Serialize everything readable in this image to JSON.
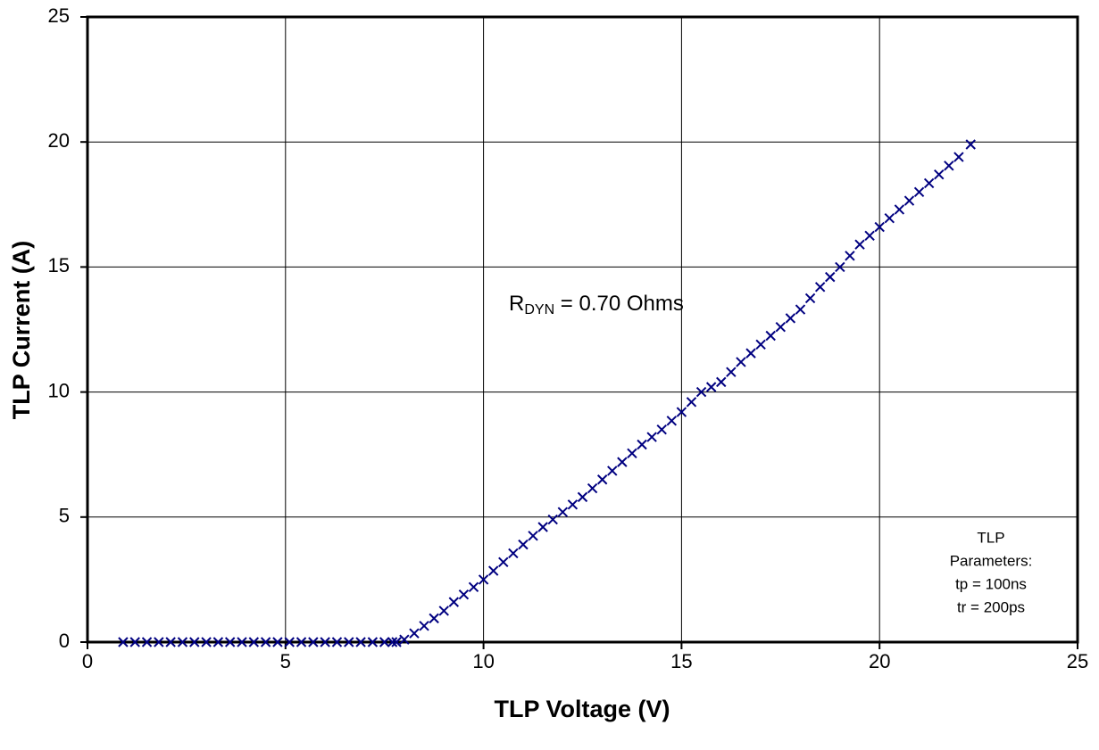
{
  "chart_data": {
    "type": "scatter",
    "x_label": "TLP Voltage (V)",
    "y_label": "TLP Current (A)",
    "xlim": [
      0,
      25
    ],
    "xticks": [
      0,
      5,
      10,
      15,
      20,
      25
    ],
    "ylim": [
      0,
      25
    ],
    "yticks": [
      0,
      5,
      10,
      15,
      20,
      25
    ],
    "grid": true,
    "marker": "x",
    "color": "#000080",
    "x": [
      0.9,
      1.2,
      1.5,
      1.8,
      2.1,
      2.4,
      2.7,
      3.0,
      3.3,
      3.6,
      3.9,
      4.2,
      4.5,
      4.8,
      5.1,
      5.4,
      5.7,
      6.0,
      6.3,
      6.6,
      6.9,
      7.2,
      7.5,
      7.7,
      7.8,
      8.0,
      8.25,
      8.5,
      8.75,
      9.0,
      9.25,
      9.5,
      9.75,
      10,
      10.25,
      10.5,
      10.75,
      11,
      11.25,
      11.5,
      11.75,
      12,
      12.25,
      12.5,
      12.75,
      13,
      13.25,
      13.5,
      13.75,
      14,
      14.25,
      14.5,
      14.75,
      15,
      15.25,
      15.5,
      15.75,
      16,
      16.25,
      16.5,
      16.75,
      17,
      17.25,
      17.5,
      17.75,
      18,
      18.25,
      18.5,
      18.75,
      19,
      19.25,
      19.5,
      19.75,
      20,
      20.25,
      20.5,
      20.75,
      21,
      21.25,
      21.5,
      21.75,
      22,
      22.3
    ],
    "values": [
      0,
      0,
      0,
      0,
      0,
      0,
      0,
      0,
      0,
      0,
      0,
      0,
      0,
      0,
      0,
      0,
      0,
      0,
      0,
      0,
      0,
      0,
      0,
      0,
      0,
      0.1,
      0.35,
      0.65,
      0.95,
      1.25,
      1.6,
      1.9,
      2.2,
      2.5,
      2.85,
      3.2,
      3.55,
      3.9,
      4.25,
      4.6,
      4.9,
      5.2,
      5.5,
      5.8,
      6.15,
      6.5,
      6.85,
      7.2,
      7.55,
      7.9,
      8.2,
      8.5,
      8.85,
      9.2,
      9.6,
      10.0,
      10.2,
      10.4,
      10.8,
      11.2,
      11.55,
      11.9,
      12.25,
      12.6,
      12.95,
      13.3,
      13.75,
      14.2,
      14.6,
      15.0,
      15.45,
      15.9,
      16.25,
      16.6,
      16.95,
      17.3,
      17.65,
      18.0,
      18.35,
      18.7,
      19.05,
      19.4,
      19.9
    ],
    "annotation": {
      "symbol": "R",
      "subscript": "DYN",
      "text": " = 0.70 Ohms"
    },
    "parameters": [
      "TLP",
      "Parameters:",
      "tp = 100ns",
      "tr = 200ps"
    ]
  }
}
